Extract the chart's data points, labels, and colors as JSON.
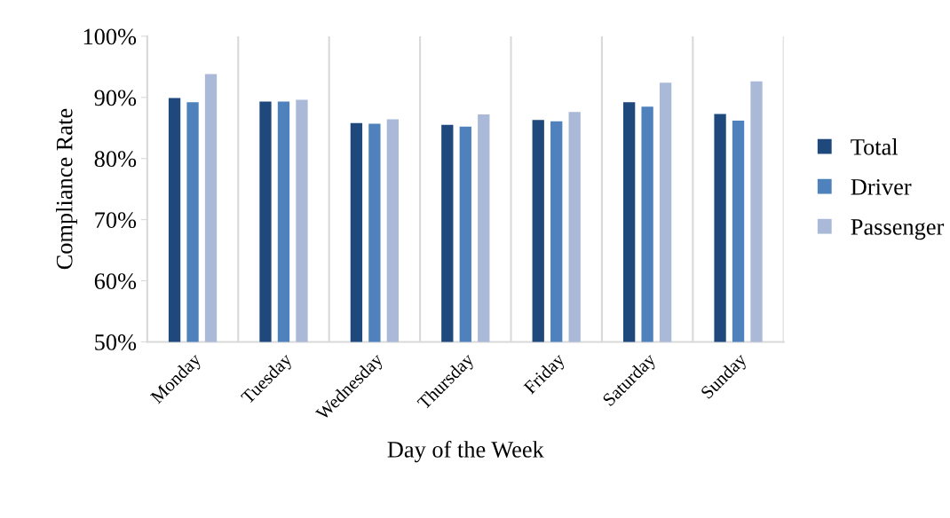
{
  "chart_data": {
    "type": "bar",
    "xlabel": "Day of the Week",
    "ylabel": "Compliance Rate",
    "categories": [
      "Monday",
      "Tuesday",
      "Wednesday",
      "Thursday",
      "Friday",
      "Saturday",
      "Sunday"
    ],
    "series": [
      {
        "name": "Total",
        "color": "#1f497d",
        "values": [
          89.9,
          89.3,
          85.8,
          85.5,
          86.3,
          89.2,
          87.3
        ]
      },
      {
        "name": "Driver",
        "color": "#4f81bd",
        "values": [
          89.2,
          89.3,
          85.7,
          85.2,
          86.1,
          88.5,
          86.2
        ]
      },
      {
        "name": "Passenger",
        "color": "#aab9d7",
        "values": [
          93.8,
          89.6,
          86.4,
          87.2,
          87.6,
          92.4,
          92.6
        ]
      }
    ],
    "ylim": [
      50,
      100
    ],
    "yticks": [
      {
        "value": 50,
        "label": "50%"
      },
      {
        "value": 60,
        "label": "60%"
      },
      {
        "value": 70,
        "label": "70%"
      },
      {
        "value": 80,
        "label": "80%"
      },
      {
        "value": 90,
        "label": "90%"
      },
      {
        "value": 100,
        "label": "100%"
      }
    ],
    "grid": "x",
    "legend": "right"
  }
}
